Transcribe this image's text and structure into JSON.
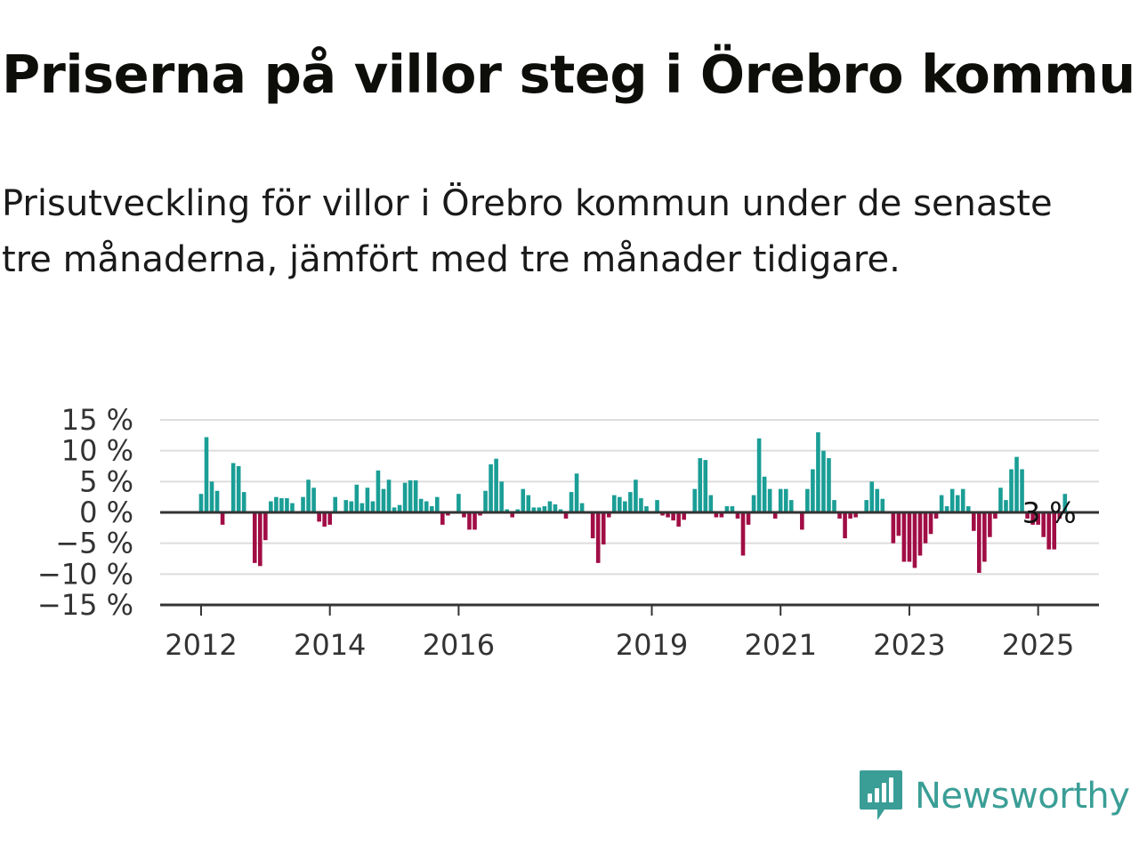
{
  "title": "Priserna på villor steg i Örebro kommun",
  "subtitle": "Prisutveckling för villor i Örebro kommun under de senaste tre månaderna, jämfört med tre månader tidigare.",
  "brand": {
    "name": "Newsworthy",
    "icon": "newsworthy-logo-icon",
    "color": "#3a9e96"
  },
  "chart_data": {
    "type": "bar",
    "title": "Priserna på villor steg i Örebro kommun",
    "xlabel": "",
    "ylabel": "",
    "ylim": [
      -15,
      15
    ],
    "yticks": [
      15,
      10,
      5,
      0,
      -5,
      -10,
      -15
    ],
    "ytick_labels": [
      "15 %",
      "10 %",
      "5 %",
      "0 %",
      "−5 %",
      "−10 %",
      "−15 %"
    ],
    "xticks": [
      {
        "label": "2012",
        "index": 0
      },
      {
        "label": "2014",
        "index": 24
      },
      {
        "label": "2016",
        "index": 48
      },
      {
        "label": "2019",
        "index": 84
      },
      {
        "label": "2021",
        "index": 108
      },
      {
        "label": "2023",
        "index": 132
      },
      {
        "label": "2025",
        "index": 156
      }
    ],
    "start_index": -1,
    "annotation": {
      "text": "3 %",
      "index": 158
    },
    "colors": {
      "positive": "#1a9e96",
      "negative": "#a10d45",
      "grid": "#dddddd",
      "axis": "#333333"
    },
    "grid": true,
    "values": [
      3,
      12.2,
      5,
      3.5,
      -2,
      0,
      8,
      7.5,
      3.3,
      0,
      -8.2,
      -8.7,
      -4.5,
      1.8,
      2.5,
      2.3,
      2.3,
      1.5,
      0,
      2.5,
      5.3,
      4,
      -1.5,
      -2.3,
      -2,
      2.5,
      0,
      2,
      1.8,
      4.5,
      1.5,
      4,
      1.8,
      6.8,
      3.8,
      5.3,
      0.8,
      1.2,
      4.8,
      5.2,
      5.2,
      2.2,
      1.8,
      1,
      2.5,
      -2,
      -0.5,
      0,
      3,
      -0.8,
      -2.8,
      -2.8,
      -0.5,
      3.5,
      7.8,
      8.7,
      5,
      0.5,
      -0.8,
      0.5,
      3.8,
      2.8,
      0.8,
      0.8,
      1,
      1.8,
      1.3,
      0.5,
      -1,
      3.3,
      6.3,
      1.5,
      0,
      -4.2,
      -8.2,
      -5.2,
      -0.8,
      2.8,
      2.5,
      1.8,
      3.3,
      5.3,
      2.3,
      1,
      0,
      2,
      -0.5,
      -0.8,
      -1.3,
      -2.3,
      -1.2,
      0,
      3.8,
      8.8,
      8.5,
      2.8,
      -0.8,
      -0.8,
      1,
      1,
      -1,
      -7,
      -2,
      2.8,
      12,
      5.8,
      3.8,
      -1,
      3.8,
      3.8,
      2,
      0,
      -2.8,
      3.8,
      7,
      13,
      10,
      8.8,
      2,
      -1,
      -4.2,
      -1,
      -0.8,
      0,
      2,
      5,
      3.8,
      2.2,
      0,
      -5,
      -3.8,
      -8,
      -8,
      -9,
      -7,
      -5,
      -3.5,
      -1,
      2.8,
      1,
      3.8,
      2.8,
      3.8,
      1,
      -3,
      -9.8,
      -8,
      -4,
      -1,
      4,
      2,
      7,
      9,
      7,
      -1,
      -2,
      -2,
      -4,
      -6,
      -6,
      -1,
      3
    ]
  }
}
